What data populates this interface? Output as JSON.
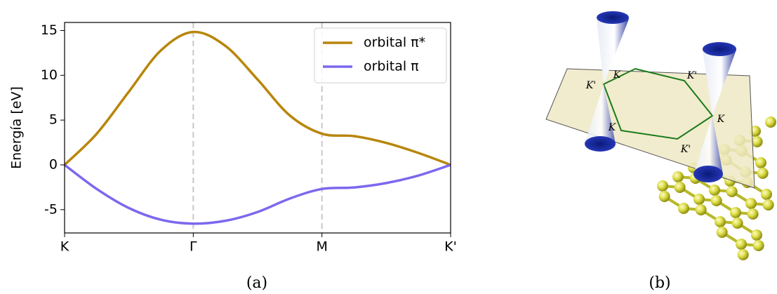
{
  "chart_data": {
    "type": "line",
    "ylabel": "Energía [eV]",
    "x": [
      0,
      0.25,
      0.5,
      0.75,
      1,
      1.25,
      1.5,
      1.75,
      2,
      2.25,
      2.5,
      2.75,
      3
    ],
    "series": [
      {
        "name": "orbital π*",
        "color": "#b8860b",
        "values": [
          0,
          3.48,
          8.18,
          12.8,
          14.84,
          13.28,
          9.53,
          5.52,
          3.48,
          3.21,
          2.45,
          1.33,
          0
        ]
      },
      {
        "name": "orbital π",
        "color": "#7b68ee",
        "values": [
          0,
          -2.69,
          -4.82,
          -6.13,
          -6.56,
          -6.24,
          -5.26,
          -3.76,
          -2.69,
          -2.52,
          -2.03,
          -1.19,
          0
        ]
      }
    ],
    "xlim": [
      0,
      3
    ],
    "xticks": [
      {
        "value": 0,
        "label": "K"
      },
      {
        "value": 1,
        "label": "Γ"
      },
      {
        "value": 2,
        "label": "M"
      },
      {
        "value": 3,
        "label": "K'"
      }
    ],
    "vlines": [
      1,
      2
    ],
    "ylim": [
      -7.6,
      15.9
    ],
    "yticks": [
      -5,
      0,
      5,
      10,
      15
    ],
    "legend": "upper right",
    "caption": "(a)"
  },
  "illustration": {
    "caption": "(b)",
    "labels": [
      "K'",
      "K",
      "K'",
      "K",
      "K'",
      "K"
    ]
  }
}
